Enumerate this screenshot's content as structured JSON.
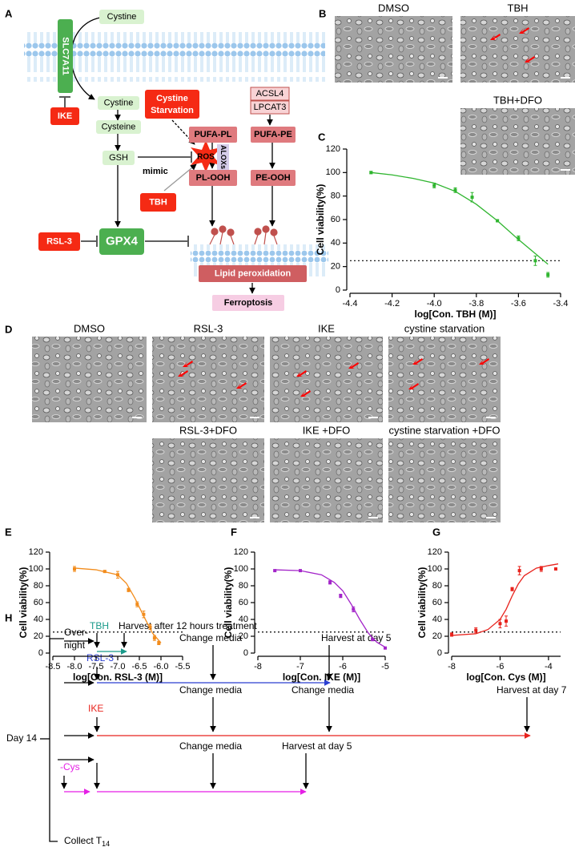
{
  "panel_labels": [
    "A",
    "B",
    "C",
    "D",
    "E",
    "F",
    "G",
    "H"
  ],
  "diagram": {
    "cystine_out": "Cystine",
    "transporter": "SLC7A11",
    "cystine_in": "Cystine",
    "cysteine": "Cysteine",
    "gsh": "GSH",
    "ike": "IKE",
    "starvation": [
      "Cystine",
      "Starvation"
    ],
    "acsl4": "ACSL4",
    "lpcat3": "LPCAT3",
    "pufa_pl": "PUFA-PL",
    "pufa_pe": "PUFA-PE",
    "ros": "ROS",
    "aloxs": "ALOXs",
    "mimic": "mimic",
    "pl_ooh": "PL-OOH",
    "pe_ooh": "PE-OOH",
    "tbh": "TBH",
    "rsl3": "RSL-3",
    "gpx4": "GPX4",
    "lipid_peroxidation": "Lipid peroxidation",
    "ferroptosis": "Ferroptosis"
  },
  "micrographs_b": [
    "DMSO",
    "TBH",
    "TBH+DFO"
  ],
  "micrographs_d": [
    "DMSO",
    "RSL-3",
    "IKE",
    "cystine starvation",
    "RSL-3+DFO",
    "IKE +DFO",
    "cystine starvation +DFO"
  ],
  "chart_data": [
    {
      "type": "scatter",
      "color": "#2fb52f",
      "xlabel": "log[Con. TBH (M)]",
      "ylabel": "Cell viability(%)",
      "x": [
        -4.3,
        -4.0,
        -3.9,
        -3.82,
        -3.7,
        -3.6,
        -3.52,
        -3.46
      ],
      "values": [
        100,
        89,
        85,
        79,
        59,
        44,
        25,
        13
      ],
      "errors": [
        1,
        2,
        2,
        4,
        1,
        2,
        4,
        2
      ],
      "curve": {
        "x": [
          -4.3,
          -4.2,
          -4.1,
          -4.0,
          -3.9,
          -3.8,
          -3.7,
          -3.6,
          -3.5,
          -3.46
        ],
        "values": [
          100,
          98,
          95,
          91,
          84,
          73,
          59,
          43,
          28,
          22
        ]
      },
      "reference_line": 25,
      "xlim": [
        -4.4,
        -3.4
      ],
      "xticks": [
        -4.4,
        -4.2,
        {
          "value": -4.0,
          "label": "-4.0"
        },
        -3.8,
        -3.6,
        -3.4
      ],
      "ylim": [
        0,
        120
      ],
      "yticks": [
        0,
        20,
        40,
        60,
        80,
        100,
        120
      ]
    },
    {
      "type": "scatter",
      "color": "#f28c1c",
      "xlabel": "log[Con. RSL-3 (M)]",
      "ylabel": "Cell viability(%)",
      "x": [
        -8.0,
        -7.3,
        -7.0,
        -6.75,
        -6.55,
        -6.4,
        -6.25,
        -6.15,
        -6.05
      ],
      "values": [
        100,
        97,
        93,
        75,
        58,
        46,
        31,
        18,
        12
      ],
      "errors": [
        3,
        1,
        4,
        2,
        3,
        4,
        3,
        3,
        2
      ],
      "curve": {
        "x": [
          -8.0,
          -7.5,
          -7.0,
          -6.8,
          -6.6,
          -6.4,
          -6.2,
          -6.0
        ],
        "values": [
          101,
          99,
          93,
          83,
          65,
          44,
          24,
          12
        ]
      },
      "reference_line": 25,
      "xlim": [
        -8.5,
        -5.5
      ],
      "xticks": [
        -8.5,
        {
          "value": -8.0,
          "label": "-8.0"
        },
        -7.5,
        {
          "value": -7.0,
          "label": "-7.0"
        },
        -6.5,
        {
          "value": -6.0,
          "label": "-6.0"
        },
        -5.5
      ],
      "ylim": [
        0,
        120
      ],
      "yticks": [
        0,
        20,
        40,
        60,
        80,
        100,
        120
      ]
    },
    {
      "type": "scatter",
      "color": "#a325c9",
      "xlabel": "log[Con. IKE (M)]",
      "ylabel": "Cell viability(%)",
      "x": [
        -7.6,
        -7.0,
        -6.3,
        -6.05,
        -5.75,
        -5.3,
        -5.0
      ],
      "values": [
        98,
        98,
        84,
        68,
        52,
        16,
        6
      ],
      "errors": [
        1,
        1,
        2,
        2,
        3,
        1,
        1
      ],
      "curve": {
        "x": [
          -7.6,
          -7.0,
          -6.5,
          -6.2,
          -6.0,
          -5.8,
          -5.6,
          -5.4,
          -5.2,
          -5.0
        ],
        "values": [
          99,
          98,
          93,
          84,
          74,
          58,
          40,
          24,
          13,
          7
        ]
      },
      "reference_line": 25,
      "xlim": [
        -8,
        -5
      ],
      "xticks": [
        -8,
        -7,
        -6,
        -5
      ],
      "ylim": [
        0,
        120
      ],
      "yticks": [
        0,
        20,
        40,
        60,
        80,
        100,
        120
      ]
    },
    {
      "type": "scatter",
      "color": "#e8231d",
      "xlabel": "log[Con. Cys (M)]",
      "ylabel": "Cell viability(%)",
      "x": [
        -8.0,
        -7.0,
        -6.0,
        -5.75,
        -5.5,
        -5.2,
        -4.3,
        -3.7
      ],
      "values": [
        22,
        27,
        35,
        38,
        76,
        98,
        100,
        100
      ],
      "errors": [
        2,
        3,
        5,
        6,
        2,
        5,
        3,
        1
      ],
      "curve": {
        "x": [
          -8.0,
          -7.0,
          -6.5,
          -6.0,
          -5.75,
          -5.5,
          -5.25,
          -5.0,
          -4.5,
          -4.0,
          -3.6
        ],
        "values": [
          21,
          23,
          28,
          40,
          52,
          68,
          82,
          92,
          101,
          104,
          106
        ]
      },
      "reference_line": 25,
      "xlim": [
        -8,
        -3.5
      ],
      "xticks": [
        -8,
        -6,
        -4
      ],
      "ylim": [
        0,
        120
      ],
      "yticks": [
        0,
        20,
        40,
        60,
        80,
        100,
        120
      ]
    }
  ],
  "timeline": {
    "tbh": "TBH",
    "tbh_harvest": "Harvest after 12 hours treatment",
    "overnight": [
      "Over-",
      "night"
    ],
    "rsl3": "RSL-3",
    "rsl3_change": "Change media",
    "rsl3_harvest": "Harvest at day 5",
    "ike": "IKE",
    "ike_change_1": "Change media",
    "ike_change_2": "Change media",
    "ike_harvest": "Harvest at day 7",
    "day": "Day 14",
    "cys": "-Cys",
    "cys_change": "Change media",
    "cys_harvest": "Harvest at day 5",
    "collect": "Collect T",
    "collect_sub": "14"
  }
}
